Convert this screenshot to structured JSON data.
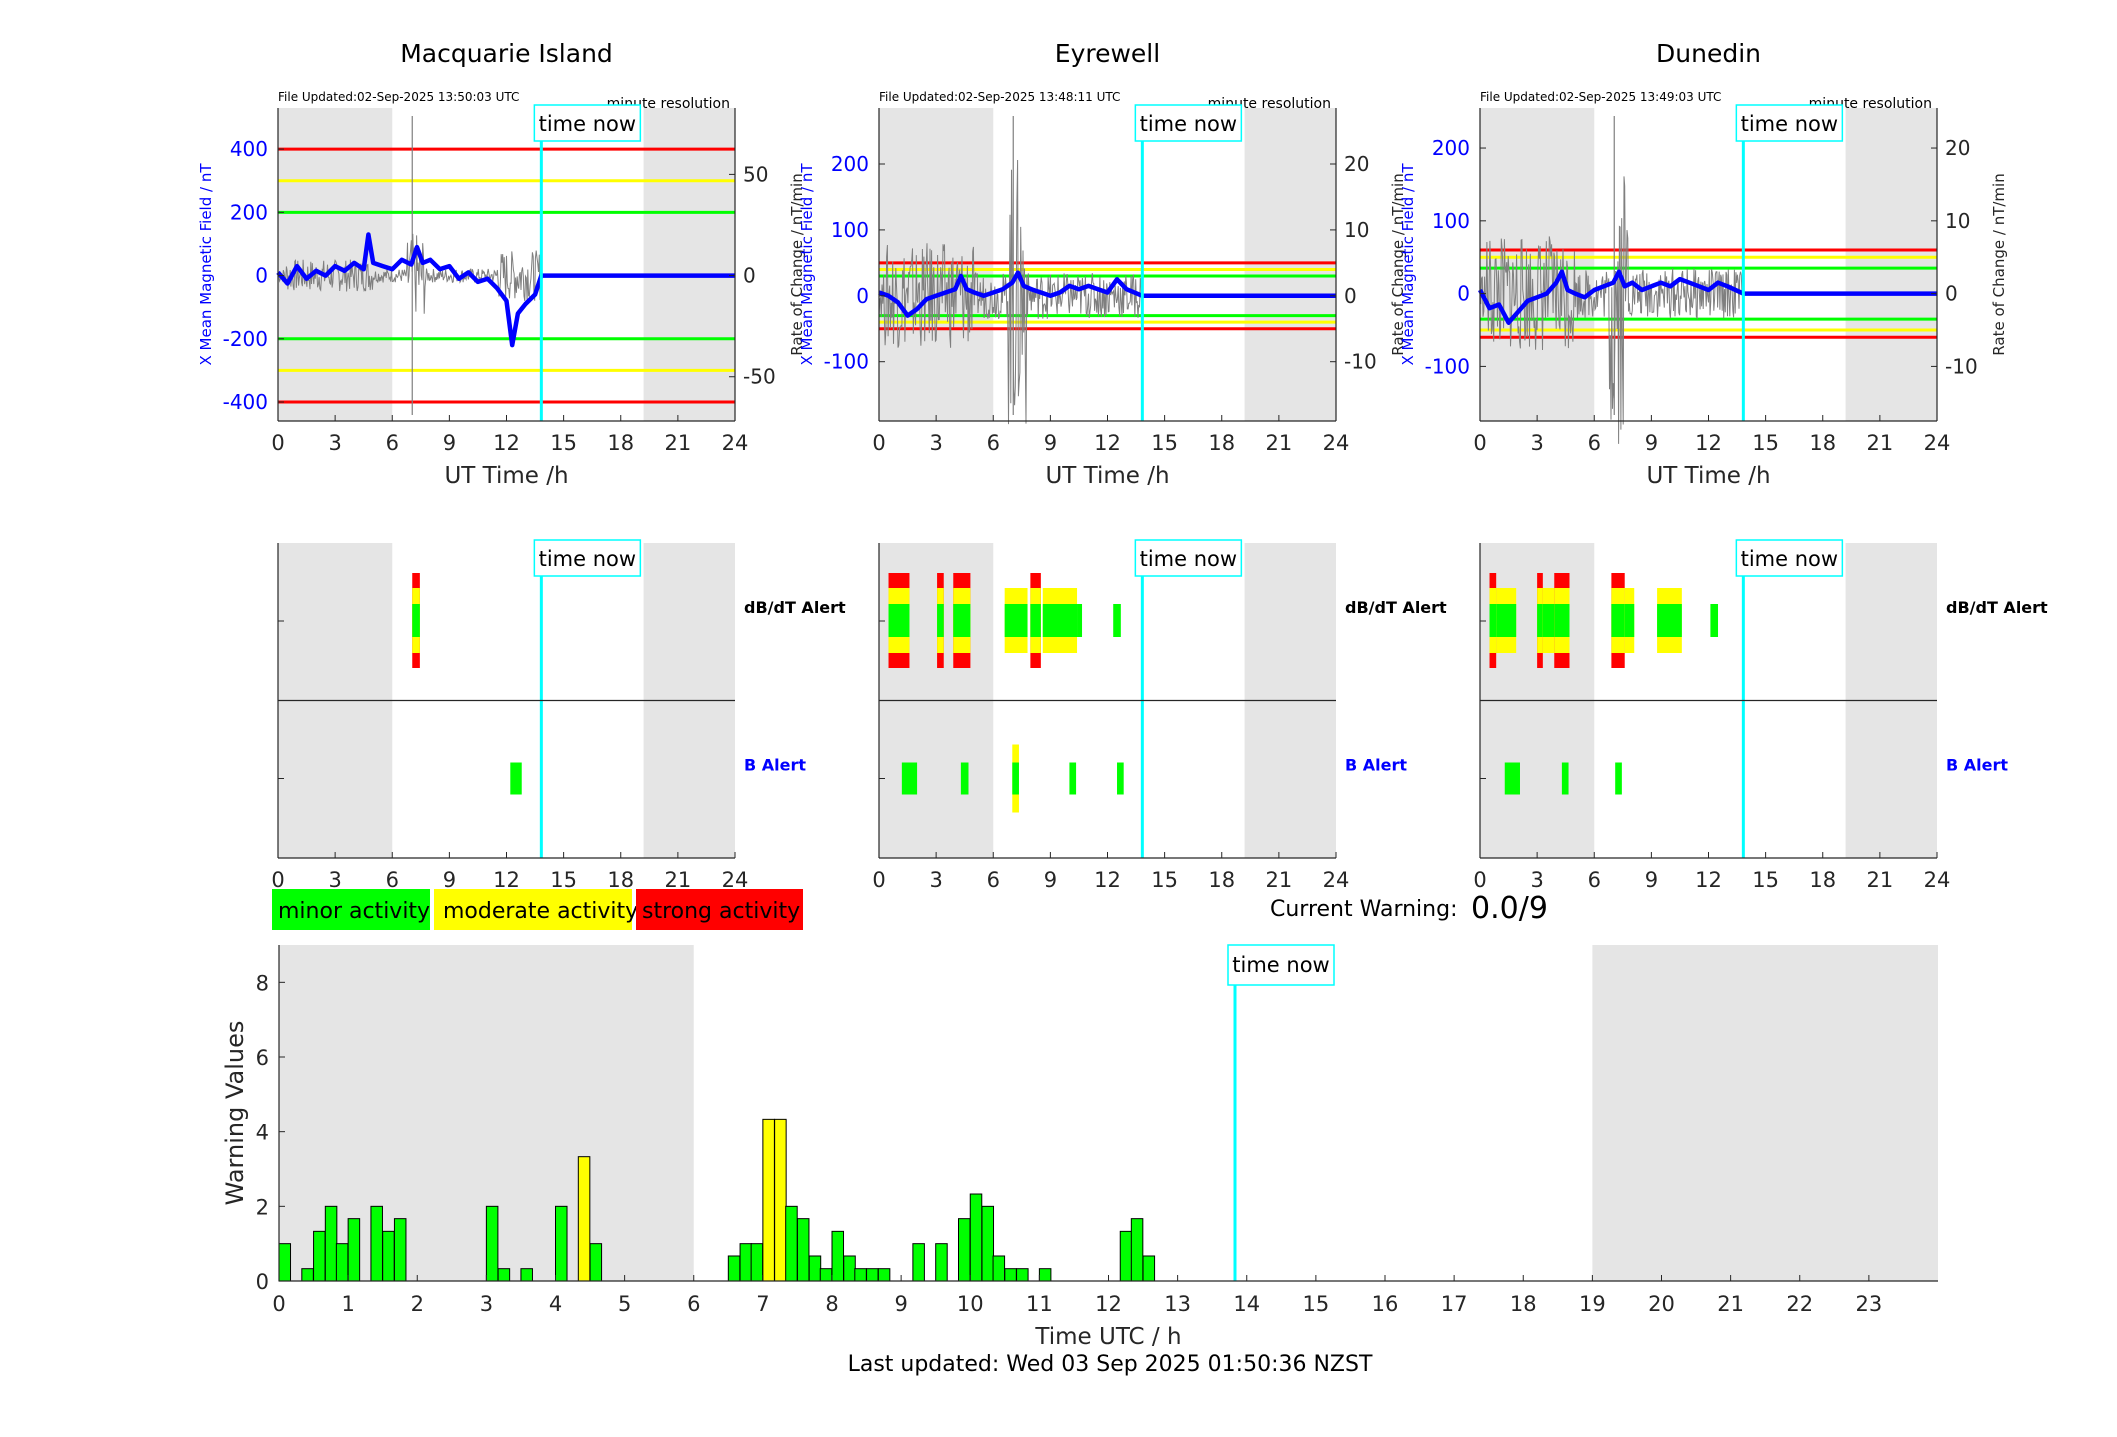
{
  "colors": {
    "minor": "#00ff00",
    "moderate": "#ffff00",
    "strong": "#ff0000",
    "time_now": "#00ffff",
    "night_shade": "#e5e5e5",
    "field_line": "#0000ff",
    "rate_line": "#7f7f7f"
  },
  "stations": [
    {
      "name": "Macquarie Island",
      "file_updated": "File Updated:02-Sep-2025 13:50:03 UTC",
      "resolution": "minute resolution",
      "left_axis_label": "X Mean Magnetic Field / nT",
      "right_axis_label": "Rate of Change / nT/min",
      "x_label": "UT Time /h",
      "time_now_label": "time now",
      "time_now_hour": 13.83,
      "night_shading_hours": [
        [
          0,
          6
        ],
        [
          19.2,
          24
        ]
      ],
      "field_ticks": [
        -400,
        -200,
        0,
        200,
        400
      ],
      "rate_ticks": [
        -50,
        0,
        50
      ],
      "field_ylim": [
        -460,
        530
      ],
      "rate_ylim": [
        -71.875,
        82.8125
      ],
      "thresholds_nT": {
        "green": 200,
        "yellow": 300,
        "red": 400
      },
      "x_ticks": [
        0,
        3,
        6,
        9,
        12,
        15,
        18,
        21,
        24
      ],
      "alerts": {
        "dbdt_label": "dB/dT Alert",
        "b_label": "B Alert",
        "dbdt": [
          [
            7.05,
            7.45,
            "strong"
          ]
        ],
        "b": [
          [
            12.2,
            12.8,
            "minor"
          ]
        ]
      },
      "field_series": [
        [
          0,
          10
        ],
        [
          0.5,
          -25
        ],
        [
          1,
          30
        ],
        [
          1.5,
          -10
        ],
        [
          2,
          15
        ],
        [
          2.5,
          0
        ],
        [
          3,
          30
        ],
        [
          3.5,
          15
        ],
        [
          4,
          40
        ],
        [
          4.5,
          20
        ],
        [
          4.75,
          130
        ],
        [
          5,
          40
        ],
        [
          5.5,
          30
        ],
        [
          6,
          20
        ],
        [
          6.5,
          50
        ],
        [
          7,
          35
        ],
        [
          7.3,
          90
        ],
        [
          7.6,
          40
        ],
        [
          8,
          50
        ],
        [
          8.5,
          20
        ],
        [
          9,
          30
        ],
        [
          9.5,
          -10
        ],
        [
          10,
          10
        ],
        [
          10.5,
          -20
        ],
        [
          11,
          -10
        ],
        [
          11.5,
          -40
        ],
        [
          12,
          -80
        ],
        [
          12.3,
          -220
        ],
        [
          12.6,
          -120
        ],
        [
          13,
          -90
        ],
        [
          13.5,
          -60
        ],
        [
          13.83,
          0
        ],
        [
          24,
          0
        ]
      ]
    },
    {
      "name": "Eyrewell",
      "file_updated": "File Updated:02-Sep-2025 13:48:11 UTC",
      "resolution": "minute resolution",
      "left_axis_label": "X Mean Magnetic Field / nT",
      "right_axis_label": "Rate of Change / nT/min",
      "x_label": "UT Time /h",
      "time_now_label": "time now",
      "time_now_hour": 13.83,
      "night_shading_hours": [
        [
          0,
          6
        ],
        [
          19.2,
          24
        ]
      ],
      "field_ticks": [
        -100,
        0,
        100,
        200
      ],
      "rate_ticks": [
        -10,
        0,
        10,
        20
      ],
      "field_ylim": [
        -190,
        285
      ],
      "rate_ylim": [
        -19,
        28.5
      ],
      "thresholds_nT": {
        "green": 30,
        "yellow": 40,
        "red": 50
      },
      "x_ticks": [
        0,
        3,
        6,
        9,
        12,
        15,
        18,
        21,
        24
      ],
      "alerts": {
        "dbdt_label": "dB/dT Alert",
        "b_label": "B Alert",
        "dbdt": [
          [
            0.5,
            1.6,
            "strong"
          ],
          [
            3.05,
            3.4,
            "strong"
          ],
          [
            3.9,
            4.8,
            "strong"
          ],
          [
            6.6,
            7.8,
            "moderate"
          ],
          [
            7.95,
            8.5,
            "strong"
          ],
          [
            8.6,
            10.4,
            "moderate"
          ],
          [
            10.4,
            10.5,
            "minor"
          ],
          [
            12.3,
            12.7,
            "minor"
          ]
        ],
        "b": [
          [
            1.2,
            2.0,
            "minor"
          ],
          [
            4.3,
            4.7,
            "minor"
          ],
          [
            7.0,
            7.35,
            "moderate"
          ],
          [
            10.0,
            10.35,
            "minor"
          ],
          [
            12.5,
            12.85,
            "minor"
          ]
        ]
      },
      "field_series": [
        [
          0,
          5
        ],
        [
          0.5,
          0
        ],
        [
          1,
          -10
        ],
        [
          1.5,
          -30
        ],
        [
          2,
          -20
        ],
        [
          2.5,
          -5
        ],
        [
          3,
          0
        ],
        [
          3.5,
          5
        ],
        [
          4,
          10
        ],
        [
          4.3,
          30
        ],
        [
          4.6,
          10
        ],
        [
          5,
          5
        ],
        [
          5.5,
          0
        ],
        [
          6,
          5
        ],
        [
          6.5,
          10
        ],
        [
          7,
          20
        ],
        [
          7.3,
          35
        ],
        [
          7.6,
          15
        ],
        [
          8,
          10
        ],
        [
          8.5,
          5
        ],
        [
          9,
          0
        ],
        [
          9.5,
          5
        ],
        [
          10,
          15
        ],
        [
          10.5,
          10
        ],
        [
          11,
          15
        ],
        [
          11.5,
          10
        ],
        [
          12,
          5
        ],
        [
          12.5,
          25
        ],
        [
          13,
          10
        ],
        [
          13.83,
          0
        ],
        [
          24,
          0
        ]
      ]
    },
    {
      "name": "Dunedin",
      "file_updated": "File Updated:02-Sep-2025 13:49:03 UTC",
      "resolution": "minute resolution",
      "left_axis_label": "X Mean Magnetic Field / nT",
      "right_axis_label": "Rate of Change / nT/min",
      "x_label": "UT Time /h",
      "time_now_label": "time now",
      "time_now_hour": 13.83,
      "night_shading_hours": [
        [
          0,
          6
        ],
        [
          19.2,
          24
        ]
      ],
      "field_ticks": [
        -100,
        0,
        100,
        200
      ],
      "rate_ticks": [
        -10,
        0,
        10,
        20
      ],
      "field_ylim": [
        -175,
        255
      ],
      "rate_ylim": [
        -17.5,
        25.5
      ],
      "thresholds_nT": {
        "green": 35,
        "yellow": 50,
        "red": 60
      },
      "x_ticks": [
        0,
        3,
        6,
        9,
        12,
        15,
        18,
        21,
        24
      ],
      "alerts": {
        "dbdt_label": "dB/dT Alert",
        "b_label": "B Alert",
        "dbdt": [
          [
            0.5,
            0.85,
            "strong"
          ],
          [
            0.85,
            1.9,
            "moderate"
          ],
          [
            3.0,
            3.3,
            "strong"
          ],
          [
            3.3,
            3.9,
            "moderate"
          ],
          [
            3.9,
            4.7,
            "strong"
          ],
          [
            6.9,
            7.6,
            "strong"
          ],
          [
            7.6,
            8.1,
            "moderate"
          ],
          [
            9.3,
            10.6,
            "moderate"
          ],
          [
            12.1,
            12.5,
            "minor"
          ]
        ],
        "b": [
          [
            1.3,
            2.1,
            "minor"
          ],
          [
            4.3,
            4.65,
            "minor"
          ],
          [
            7.1,
            7.45,
            "minor"
          ]
        ]
      },
      "field_series": [
        [
          0,
          5
        ],
        [
          0.5,
          -20
        ],
        [
          1,
          -15
        ],
        [
          1.5,
          -40
        ],
        [
          2,
          -25
        ],
        [
          2.5,
          -10
        ],
        [
          3,
          -5
        ],
        [
          3.5,
          0
        ],
        [
          4,
          15
        ],
        [
          4.3,
          30
        ],
        [
          4.6,
          5
        ],
        [
          5,
          0
        ],
        [
          5.5,
          -5
        ],
        [
          6,
          5
        ],
        [
          6.5,
          10
        ],
        [
          7,
          15
        ],
        [
          7.3,
          30
        ],
        [
          7.6,
          10
        ],
        [
          8,
          15
        ],
        [
          8.5,
          5
        ],
        [
          9,
          10
        ],
        [
          9.5,
          15
        ],
        [
          10,
          10
        ],
        [
          10.5,
          20
        ],
        [
          11,
          15
        ],
        [
          11.5,
          10
        ],
        [
          12,
          5
        ],
        [
          12.5,
          15
        ],
        [
          13,
          10
        ],
        [
          13.83,
          0
        ],
        [
          24,
          0
        ]
      ]
    }
  ],
  "legend": [
    {
      "label": "minor activity",
      "level": "minor"
    },
    {
      "label": "moderate activity",
      "level": "moderate"
    },
    {
      "label": "strong activity",
      "level": "strong"
    }
  ],
  "current_warning": {
    "label": "Current Warning:",
    "value": "0.0/9"
  },
  "chart_data": {
    "type": "bar",
    "ylabel": "Warning Values",
    "xlabel": "Time UTC / h",
    "ylim": [
      0,
      9
    ],
    "xlim": [
      0,
      24
    ],
    "y_ticks": [
      0,
      2,
      4,
      6,
      8
    ],
    "x_ticks": [
      0,
      1,
      2,
      3,
      4,
      5,
      6,
      7,
      8,
      9,
      10,
      11,
      12,
      13,
      14,
      15,
      16,
      17,
      18,
      19,
      20,
      21,
      22,
      23
    ],
    "bar_width_hours": 0.1667,
    "time_now_label": "time now",
    "time_now_hour": 13.83,
    "night_shading_hours": [
      [
        0,
        6
      ],
      [
        19,
        24
      ]
    ],
    "bars": [
      {
        "t": 0.0,
        "v": 1.0,
        "level": "minor"
      },
      {
        "t": 0.33,
        "v": 0.33,
        "level": "minor"
      },
      {
        "t": 0.5,
        "v": 1.33,
        "level": "minor"
      },
      {
        "t": 0.67,
        "v": 2.0,
        "level": "minor"
      },
      {
        "t": 0.83,
        "v": 1.0,
        "level": "minor"
      },
      {
        "t": 1.0,
        "v": 1.67,
        "level": "minor"
      },
      {
        "t": 1.33,
        "v": 2.0,
        "level": "minor"
      },
      {
        "t": 1.5,
        "v": 1.33,
        "level": "minor"
      },
      {
        "t": 1.67,
        "v": 1.67,
        "level": "minor"
      },
      {
        "t": 3.0,
        "v": 2.0,
        "level": "minor"
      },
      {
        "t": 3.17,
        "v": 0.33,
        "level": "minor"
      },
      {
        "t": 3.5,
        "v": 0.33,
        "level": "minor"
      },
      {
        "t": 4.0,
        "v": 2.0,
        "level": "minor"
      },
      {
        "t": 4.33,
        "v": 3.33,
        "level": "moderate"
      },
      {
        "t": 4.5,
        "v": 1.0,
        "level": "minor"
      },
      {
        "t": 6.5,
        "v": 0.67,
        "level": "minor"
      },
      {
        "t": 6.67,
        "v": 1.0,
        "level": "minor"
      },
      {
        "t": 6.83,
        "v": 1.0,
        "level": "minor"
      },
      {
        "t": 7.0,
        "v": 4.33,
        "level": "moderate"
      },
      {
        "t": 7.17,
        "v": 4.33,
        "level": "moderate"
      },
      {
        "t": 7.33,
        "v": 2.0,
        "level": "minor"
      },
      {
        "t": 7.5,
        "v": 1.67,
        "level": "minor"
      },
      {
        "t": 7.67,
        "v": 0.67,
        "level": "minor"
      },
      {
        "t": 7.83,
        "v": 0.33,
        "level": "minor"
      },
      {
        "t": 8.0,
        "v": 1.33,
        "level": "minor"
      },
      {
        "t": 8.17,
        "v": 0.67,
        "level": "minor"
      },
      {
        "t": 8.33,
        "v": 0.33,
        "level": "minor"
      },
      {
        "t": 8.5,
        "v": 0.33,
        "level": "minor"
      },
      {
        "t": 8.67,
        "v": 0.33,
        "level": "minor"
      },
      {
        "t": 9.17,
        "v": 1.0,
        "level": "minor"
      },
      {
        "t": 9.5,
        "v": 1.0,
        "level": "minor"
      },
      {
        "t": 9.83,
        "v": 1.67,
        "level": "minor"
      },
      {
        "t": 10.0,
        "v": 2.33,
        "level": "minor"
      },
      {
        "t": 10.17,
        "v": 2.0,
        "level": "minor"
      },
      {
        "t": 10.33,
        "v": 0.67,
        "level": "minor"
      },
      {
        "t": 10.5,
        "v": 0.33,
        "level": "minor"
      },
      {
        "t": 10.67,
        "v": 0.33,
        "level": "minor"
      },
      {
        "t": 11.0,
        "v": 0.33,
        "level": "minor"
      },
      {
        "t": 12.17,
        "v": 1.33,
        "level": "minor"
      },
      {
        "t": 12.33,
        "v": 1.67,
        "level": "minor"
      },
      {
        "t": 12.5,
        "v": 0.67,
        "level": "minor"
      }
    ]
  },
  "footer": {
    "last_updated": "Last updated: Wed 03 Sep 2025 01:50:36 NZST"
  }
}
